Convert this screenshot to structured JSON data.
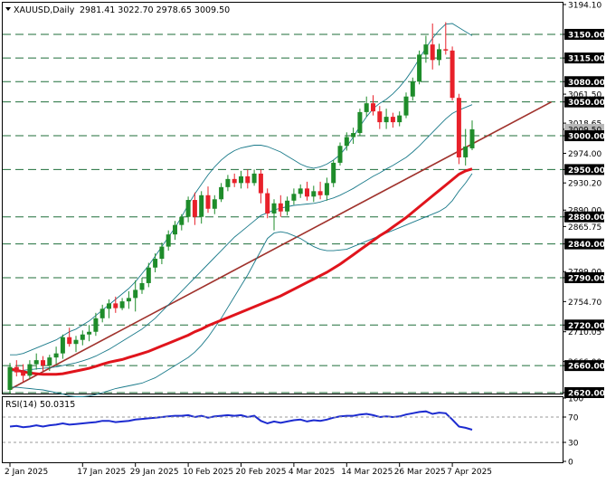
{
  "header": {
    "symbol_timeframe": "XAUUSD,Daily",
    "ohlc": "2981.41 3022.70 2978.65 3009.50"
  },
  "rsi_panel": {
    "label": "RSI(14) 50.0315",
    "ticks": [
      "100",
      "70",
      "30",
      "0"
    ],
    "value": 50.0315,
    "level_lines": [
      70,
      30
    ]
  },
  "chart_data": {
    "type": "candlestick",
    "symbol": "XAUUSD",
    "timeframe": "Daily",
    "ylim": [
      2620,
      3194.1
    ],
    "y_ticks": [
      "3194.10",
      "3150.00",
      "3115.00",
      "3080.00",
      "3061.50",
      "3050.00",
      "3018.65",
      "3009.50",
      "3000.00",
      "2974.00",
      "2950.00",
      "2930.20",
      "2890.00",
      "2880.00",
      "2865.75",
      "2840.00",
      "2799.00",
      "2790.00",
      "2754.70",
      "2720.00",
      "2710.05",
      "2666.00",
      "2660.00",
      "2620.00"
    ],
    "highlighted_levels": [
      "3150.00",
      "3115.00",
      "3080.00",
      "3050.00",
      "3009.50",
      "3000.00",
      "2950.00",
      "2880.00",
      "2840.00",
      "2790.00",
      "2720.00",
      "2660.00",
      "2620.00"
    ],
    "x_labels": [
      "2 Jan 2025",
      "17 Jan 2025",
      "29 Jan 2025",
      "10 Feb 2025",
      "20 Feb 2025",
      "4 Mar 2025",
      "14 Mar 2025",
      "26 Mar 2025",
      "7 Apr 2025"
    ],
    "x_label_index": [
      0,
      11,
      19,
      27,
      35,
      43,
      51,
      59,
      67
    ],
    "candles": [
      [
        2624,
        2664,
        2618,
        2658
      ],
      [
        2658,
        2668,
        2644,
        2650
      ],
      [
        2650,
        2662,
        2636,
        2645
      ],
      [
        2645,
        2668,
        2640,
        2662
      ],
      [
        2662,
        2678,
        2654,
        2668
      ],
      [
        2668,
        2674,
        2652,
        2660
      ],
      [
        2660,
        2676,
        2652,
        2672
      ],
      [
        2672,
        2688,
        2662,
        2678
      ],
      [
        2678,
        2706,
        2670,
        2702
      ],
      [
        2702,
        2716,
        2688,
        2692
      ],
      [
        2692,
        2704,
        2680,
        2698
      ],
      [
        2698,
        2712,
        2690,
        2706
      ],
      [
        2706,
        2720,
        2696,
        2710
      ],
      [
        2710,
        2738,
        2704,
        2730
      ],
      [
        2730,
        2750,
        2724,
        2744
      ],
      [
        2744,
        2758,
        2730,
        2752
      ],
      [
        2752,
        2762,
        2738,
        2745
      ],
      [
        2745,
        2760,
        2742,
        2755
      ],
      [
        2755,
        2770,
        2744,
        2760
      ],
      [
        2760,
        2786,
        2740,
        2772
      ],
      [
        2772,
        2790,
        2766,
        2782
      ],
      [
        2782,
        2812,
        2776,
        2805
      ],
      [
        2805,
        2826,
        2798,
        2818
      ],
      [
        2818,
        2842,
        2810,
        2836
      ],
      [
        2836,
        2860,
        2830,
        2854
      ],
      [
        2854,
        2874,
        2846,
        2868
      ],
      [
        2868,
        2884,
        2860,
        2880
      ],
      [
        2880,
        2910,
        2872,
        2905
      ],
      [
        2905,
        2916,
        2868,
        2880
      ],
      [
        2880,
        2918,
        2870,
        2912
      ],
      [
        2912,
        2925,
        2886,
        2892
      ],
      [
        2892,
        2912,
        2884,
        2906
      ],
      [
        2906,
        2930,
        2902,
        2924
      ],
      [
        2924,
        2942,
        2918,
        2936
      ],
      [
        2936,
        2944,
        2924,
        2930
      ],
      [
        2930,
        2948,
        2922,
        2940
      ],
      [
        2940,
        2950,
        2922,
        2930
      ],
      [
        2930,
        2950,
        2926,
        2944
      ],
      [
        2944,
        2950,
        2900,
        2915
      ],
      [
        2915,
        2922,
        2878,
        2885
      ],
      [
        2885,
        2906,
        2860,
        2900
      ],
      [
        2900,
        2912,
        2880,
        2888
      ],
      [
        2888,
        2910,
        2882,
        2904
      ],
      [
        2904,
        2922,
        2898,
        2914
      ],
      [
        2914,
        2928,
        2908,
        2922
      ],
      [
        2922,
        2932,
        2904,
        2910
      ],
      [
        2910,
        2926,
        2902,
        2918
      ],
      [
        2918,
        2932,
        2906,
        2912
      ],
      [
        2912,
        2938,
        2904,
        2930
      ],
      [
        2930,
        2964,
        2924,
        2960
      ],
      [
        2960,
        2990,
        2956,
        2985
      ],
      [
        2985,
        3005,
        2978,
        2998
      ],
      [
        2998,
        3012,
        2988,
        3004
      ],
      [
        3004,
        3040,
        3000,
        3035
      ],
      [
        3035,
        3058,
        3028,
        3048
      ],
      [
        3048,
        3060,
        3030,
        3036
      ],
      [
        3036,
        3044,
        3010,
        3020
      ],
      [
        3020,
        3040,
        3010,
        3028
      ],
      [
        3028,
        3034,
        3012,
        3020
      ],
      [
        3020,
        3036,
        3014,
        3030
      ],
      [
        3030,
        3064,
        3026,
        3058
      ],
      [
        3058,
        3086,
        3052,
        3080
      ],
      [
        3080,
        3126,
        3076,
        3120
      ],
      [
        3120,
        3148,
        3108,
        3135
      ],
      [
        3135,
        3166,
        3098,
        3112
      ],
      [
        3112,
        3136,
        3104,
        3128
      ],
      [
        3128,
        3168,
        3120,
        3126
      ],
      [
        3126,
        3132,
        3052,
        3056
      ],
      [
        3056,
        3062,
        2958,
        2968
      ],
      [
        2968,
        3010,
        2956,
        2984
      ],
      [
        2981.41,
        3022.7,
        2978.65,
        3009.5
      ]
    ],
    "bollinger_upper": [
      2676,
      2676,
      2678,
      2682,
      2686,
      2690,
      2694,
      2698,
      2704,
      2710,
      2714,
      2720,
      2726,
      2734,
      2742,
      2750,
      2758,
      2766,
      2774,
      2784,
      2796,
      2808,
      2822,
      2836,
      2850,
      2864,
      2880,
      2898,
      2914,
      2928,
      2942,
      2954,
      2964,
      2972,
      2978,
      2982,
      2984,
      2986,
      2986,
      2984,
      2980,
      2976,
      2970,
      2964,
      2958,
      2954,
      2952,
      2954,
      2958,
      2964,
      2972,
      2984,
      2998,
      3014,
      3028,
      3040,
      3048,
      3054,
      3062,
      3072,
      3084,
      3098,
      3114,
      3130,
      3144,
      3156,
      3165,
      3166,
      3160,
      3154,
      3148
    ],
    "bollinger_middle": [
      2652,
      2652,
      2653,
      2654,
      2655,
      2656,
      2657,
      2658,
      2660,
      2662,
      2664,
      2667,
      2670,
      2674,
      2679,
      2684,
      2690,
      2696,
      2702,
      2708,
      2714,
      2722,
      2730,
      2740,
      2750,
      2760,
      2770,
      2780,
      2790,
      2800,
      2810,
      2820,
      2830,
      2840,
      2850,
      2858,
      2866,
      2874,
      2882,
      2886,
      2890,
      2893,
      2895,
      2897,
      2898,
      2899,
      2900,
      2902,
      2905,
      2908,
      2912,
      2917,
      2922,
      2928,
      2934,
      2940,
      2945,
      2951,
      2956,
      2962,
      2968,
      2976,
      2985,
      2995,
      3005,
      3015,
      3025,
      3033,
      3038,
      3042,
      3046
    ],
    "bollinger_lower": [
      2628,
      2628,
      2627,
      2626,
      2625,
      2624,
      2622,
      2620,
      2618,
      2615,
      2614,
      2614,
      2615,
      2617,
      2620,
      2623,
      2626,
      2628,
      2630,
      2632,
      2634,
      2638,
      2642,
      2648,
      2654,
      2660,
      2666,
      2672,
      2680,
      2690,
      2702,
      2716,
      2730,
      2746,
      2762,
      2778,
      2794,
      2812,
      2830,
      2848,
      2856,
      2858,
      2856,
      2852,
      2848,
      2842,
      2836,
      2832,
      2830,
      2830,
      2831,
      2832,
      2836,
      2840,
      2844,
      2848,
      2852,
      2856,
      2860,
      2864,
      2868,
      2872,
      2876,
      2880,
      2884,
      2888,
      2894,
      2904,
      2918,
      2930,
      2944
    ],
    "ma_red": [
      2655,
      2653,
      2651,
      2649,
      2648,
      2647,
      2647,
      2647,
      2648,
      2650,
      2652,
      2654,
      2656,
      2659,
      2662,
      2665,
      2667,
      2669,
      2672,
      2675,
      2678,
      2681,
      2685,
      2689,
      2693,
      2697,
      2701,
      2705,
      2710,
      2714,
      2719,
      2723,
      2727,
      2731,
      2735,
      2739,
      2743,
      2747,
      2751,
      2755,
      2759,
      2763,
      2768,
      2773,
      2778,
      2783,
      2788,
      2793,
      2798,
      2804,
      2810,
      2817,
      2824,
      2831,
      2838,
      2845,
      2852,
      2858,
      2865,
      2872,
      2879,
      2887,
      2895,
      2903,
      2911,
      2919,
      2927,
      2935,
      2943,
      2948,
      2951
    ],
    "trendline": {
      "from": [
        0,
        2625
      ],
      "to": [
        82,
        3050
      ]
    },
    "rsi_values": [
      55,
      56,
      54,
      55,
      57,
      55,
      57,
      58,
      60,
      58,
      59,
      60,
      61,
      62,
      64,
      64,
      62,
      63,
      64,
      66,
      67,
      68,
      69,
      70,
      71,
      72,
      72,
      73,
      70,
      72,
      69,
      71,
      72,
      73,
      72,
      73,
      70,
      72,
      64,
      60,
      63,
      61,
      63,
      65,
      66,
      63,
      65,
      64,
      66,
      69,
      71,
      72,
      72,
      74,
      75,
      73,
      70,
      71,
      70,
      71,
      74,
      76,
      78,
      79,
      75,
      77,
      76,
      66,
      55,
      53,
      50.03
    ],
    "colors": {
      "bull": "#1e8c2a",
      "bear": "#e8212a",
      "level_line": "#1f6e3a",
      "level_label_bg": "#000000",
      "bollinger": "#1a7a8a",
      "ma": "#e0141c",
      "trendline": "#a0322c",
      "rsi": "#1c2bd0"
    }
  }
}
